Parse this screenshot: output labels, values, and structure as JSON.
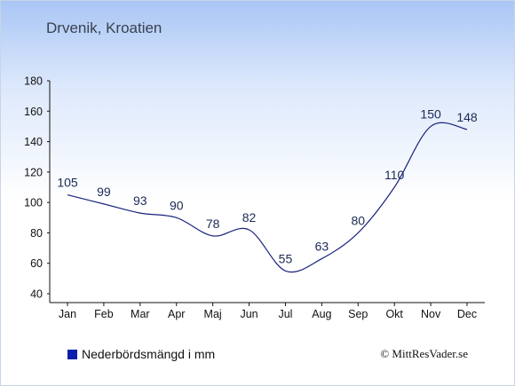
{
  "title": "Drvenik, Kroatien",
  "legend_label": "Nederbördsmängd i mm",
  "copyright": "© MittResVader.se",
  "colors": {
    "line": "#1a237e",
    "axis": "#111111",
    "legend_swatch": "#0b1fa8",
    "label_text": "#1a2a55"
  },
  "chart_data": {
    "type": "line",
    "title": "Drvenik, Kroatien",
    "xlabel": "",
    "ylabel": "",
    "categories": [
      "Jan",
      "Feb",
      "Mar",
      "Apr",
      "Maj",
      "Jun",
      "Jul",
      "Aug",
      "Sep",
      "Okt",
      "Nov",
      "Dec"
    ],
    "series": [
      {
        "name": "Nederbördsmängd i mm",
        "values": [
          105,
          99,
          93,
          90,
          78,
          82,
          55,
          63,
          80,
          110,
          150,
          148
        ]
      }
    ],
    "ylim": [
      40,
      180
    ],
    "yticks": [
      40,
      60,
      80,
      100,
      120,
      140,
      160,
      180
    ],
    "grid": false,
    "legend_position": "bottom-left",
    "data_labels": true
  }
}
